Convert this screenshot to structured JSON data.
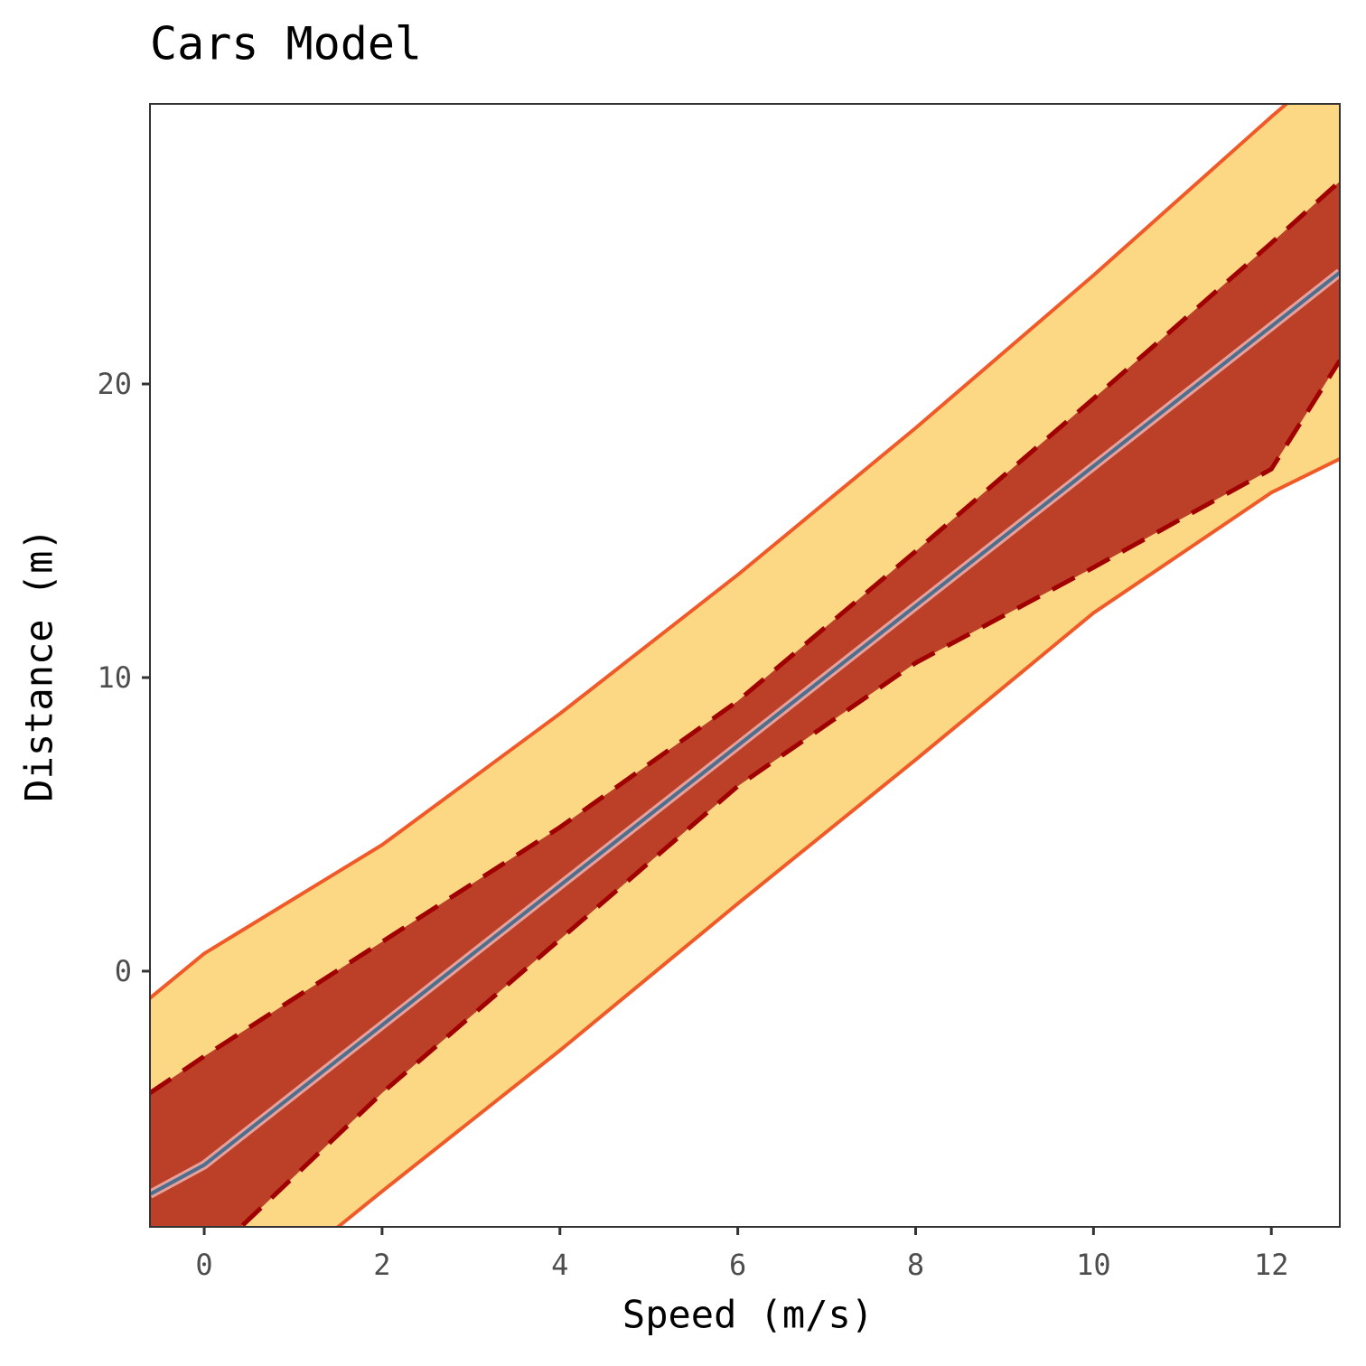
{
  "chart_data": {
    "type": "line",
    "title": "Cars Model",
    "xlabel": "Speed (m/s)",
    "ylabel": "Distance (m)",
    "x": [
      -0.61,
      0,
      2,
      4,
      6,
      8,
      10,
      12,
      12.77
    ],
    "fit": {
      "color": "#4d6f8f",
      "outline": "#e8a09a",
      "values": [
        -7.6,
        -6.6,
        -1.84,
        2.92,
        7.68,
        12.44,
        17.2,
        21.96,
        23.8
      ]
    },
    "confidence": {
      "fill": "#bc3f27",
      "line": "#a00000",
      "lower": [
        -11.2,
        -9.9,
        -4.15,
        1.08,
        6.3,
        10.5,
        13.75,
        17.1,
        20.8
      ],
      "upper": [
        -4.15,
        -2.9,
        1.0,
        4.9,
        9.2,
        14.3,
        19.5,
        24.8,
        26.9
      ]
    },
    "prediction": {
      "fill": "#fcd884",
      "line": "#f05a28",
      "lower": [
        -14.0,
        -12.4,
        -7.5,
        -2.7,
        2.3,
        7.2,
        12.2,
        16.3,
        17.45
      ],
      "upper": [
        -0.92,
        0.6,
        4.3,
        8.77,
        13.5,
        18.5,
        23.7,
        29.1,
        31.1
      ]
    },
    "xlim": [
      -0.61,
      12.77
    ],
    "ylim": [
      -8.71,
      29.54
    ],
    "xticks": [
      0,
      2,
      4,
      6,
      8,
      10,
      12
    ],
    "yticks": [
      0,
      10,
      20
    ]
  }
}
